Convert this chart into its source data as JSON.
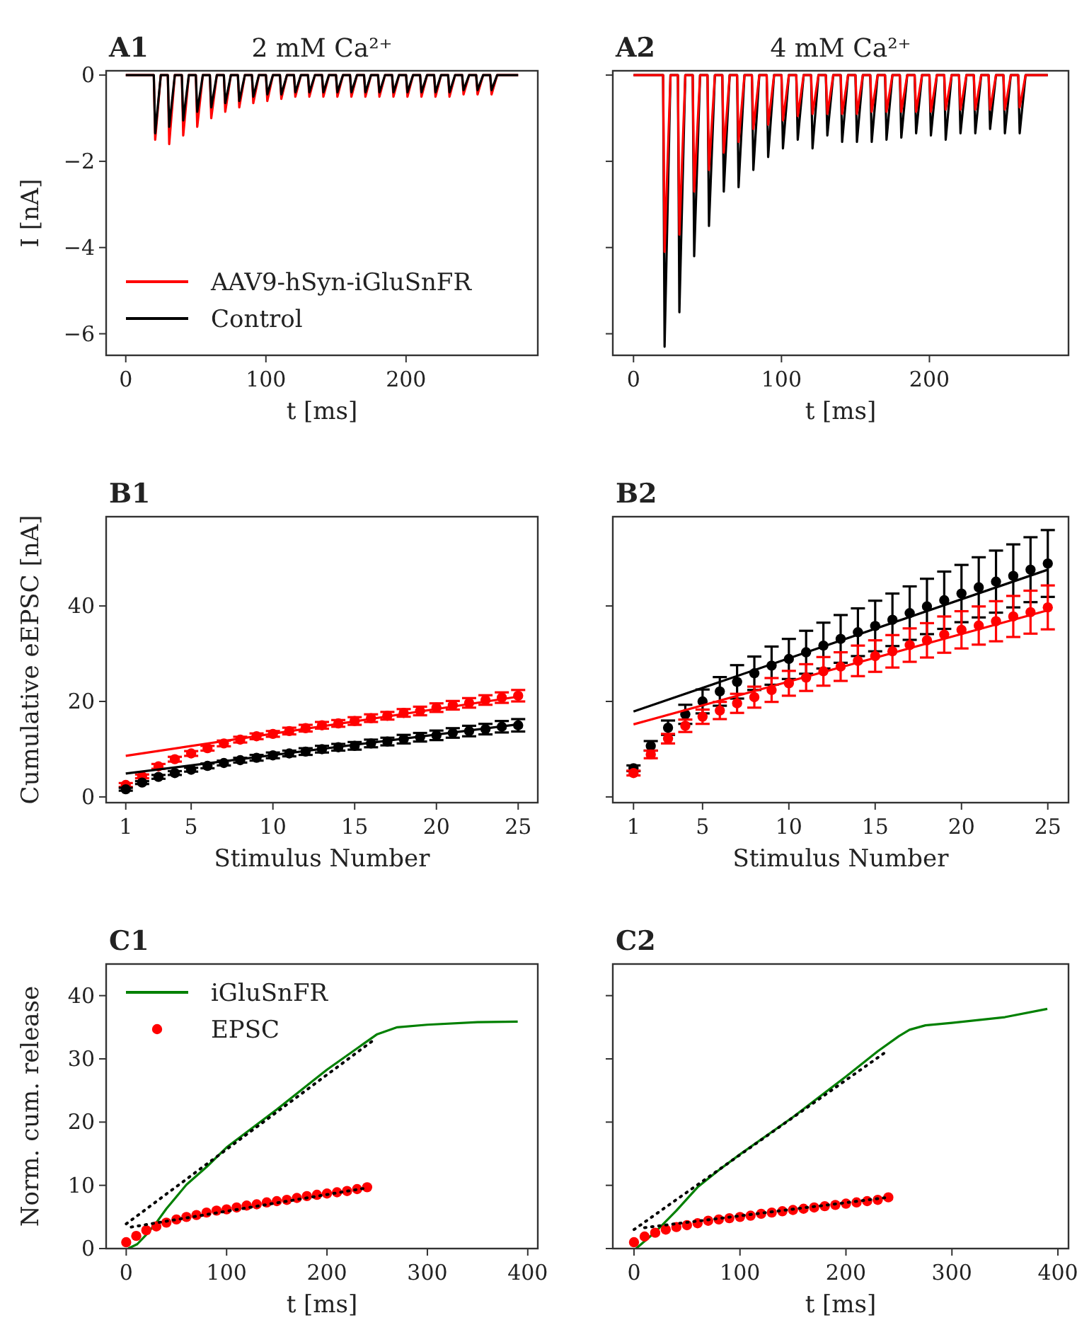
{
  "chart_data": [
    {
      "type": "line",
      "title": "2 mM Ca²⁺",
      "annotations": [
        "A1"
      ],
      "xlabel": "t [ms]",
      "ylabel": "I [nA]",
      "xlim": [
        -14,
        294
      ],
      "ylim": [
        -6.5,
        0.1
      ],
      "xticks": [
        0,
        100,
        200
      ],
      "yticks": [
        {
          "value": -6,
          "label": "−6"
        },
        {
          "value": -4,
          "label": "−4"
        },
        {
          "value": -2,
          "label": "−2"
        },
        0
      ],
      "legend": "bottom left",
      "x": [
        0,
        20,
        21,
        25,
        30,
        31,
        35,
        40,
        41,
        45,
        50,
        51,
        55,
        60,
        61,
        65,
        70,
        71,
        75,
        80,
        81,
        85,
        90,
        91,
        95,
        100,
        101,
        105,
        110,
        111,
        115,
        120,
        121,
        125,
        130,
        131,
        135,
        140,
        141,
        145,
        150,
        151,
        155,
        160,
        161,
        165,
        170,
        171,
        175,
        180,
        181,
        185,
        190,
        191,
        195,
        200,
        201,
        205,
        210,
        211,
        215,
        220,
        221,
        225,
        230,
        231,
        235,
        240,
        241,
        245,
        250,
        251,
        255,
        260,
        261,
        265,
        280
      ],
      "series": [
        {
          "name": "AAV9-hSyn-iGluSnFR",
          "color": "#ff0000",
          "values": [
            0,
            0,
            -1.5,
            0,
            0,
            -1.6,
            0,
            0,
            -1.4,
            0,
            0,
            -1.2,
            0,
            0,
            -1.0,
            0,
            0,
            -0.85,
            0,
            0,
            -0.75,
            0,
            0,
            -0.65,
            0,
            0,
            -0.6,
            0,
            0,
            -0.55,
            0,
            0,
            -0.5,
            0,
            0,
            -0.5,
            0,
            0,
            -0.5,
            0,
            0,
            -0.5,
            0,
            0,
            -0.5,
            0,
            0,
            -0.5,
            0,
            0,
            -0.5,
            0,
            0,
            -0.5,
            0,
            0,
            -0.5,
            0,
            0,
            -0.5,
            0,
            0,
            -0.5,
            0,
            0,
            -0.5,
            0,
            0,
            -0.45,
            0,
            0,
            -0.45,
            0,
            0,
            -0.45,
            0,
            0
          ]
        },
        {
          "name": "Control",
          "color": "#000000",
          "values": [
            0,
            0,
            -1.35,
            0,
            0,
            -1.2,
            0,
            0,
            -1.05,
            0,
            0,
            -0.85,
            0,
            0,
            -0.75,
            0,
            0,
            -0.65,
            0,
            0,
            -0.6,
            0,
            0,
            -0.5,
            0,
            0,
            -0.45,
            0,
            0,
            -0.45,
            0,
            0,
            -0.4,
            0,
            0,
            -0.4,
            0,
            0,
            -0.4,
            0,
            0,
            -0.4,
            0,
            0,
            -0.4,
            0,
            0,
            -0.4,
            0,
            0,
            -0.4,
            0,
            0,
            -0.4,
            0,
            0,
            -0.4,
            0,
            0,
            -0.4,
            0,
            0,
            -0.4,
            0,
            0,
            -0.4,
            0,
            0,
            -0.35,
            0,
            0,
            -0.35,
            0,
            0,
            -0.35,
            0,
            0
          ]
        }
      ]
    },
    {
      "type": "line",
      "title": "4 mM Ca²⁺",
      "annotations": [
        "A2"
      ],
      "xlabel": "t [ms]",
      "xlim": [
        -14,
        294
      ],
      "ylim": [
        -6.5,
        0.1
      ],
      "xticks": [
        0,
        100,
        200
      ],
      "yticks": [
        -6,
        -4,
        -2,
        0
      ],
      "tick_labels": "x",
      "x": [
        0,
        20,
        21,
        25,
        30,
        31,
        35,
        40,
        41,
        45,
        50,
        51,
        55,
        60,
        61,
        65,
        70,
        71,
        75,
        80,
        81,
        85,
        90,
        91,
        95,
        100,
        101,
        105,
        110,
        111,
        115,
        120,
        121,
        125,
        130,
        131,
        135,
        140,
        141,
        145,
        150,
        151,
        155,
        160,
        161,
        165,
        170,
        171,
        175,
        180,
        181,
        185,
        190,
        191,
        195,
        200,
        201,
        205,
        210,
        211,
        215,
        220,
        221,
        225,
        230,
        231,
        235,
        240,
        241,
        245,
        250,
        251,
        255,
        260,
        261,
        265,
        280
      ],
      "series": [
        {
          "color": "#000000",
          "values": [
            0,
            0,
            -6.3,
            0,
            0,
            -5.5,
            0,
            0,
            -4.2,
            0,
            0,
            -3.5,
            0,
            0,
            -2.7,
            0,
            0,
            -2.6,
            0,
            0,
            -2.2,
            0,
            0,
            -1.9,
            0,
            0,
            -1.7,
            0,
            0,
            -1.5,
            0,
            0,
            -1.7,
            0,
            0,
            -1.4,
            0,
            0,
            -1.55,
            0,
            0,
            -1.55,
            0,
            0,
            -1.55,
            0,
            0,
            -1.5,
            0,
            0,
            -1.45,
            0,
            0,
            -1.35,
            0,
            0,
            -1.4,
            0,
            0,
            -1.5,
            0,
            0,
            -1.35,
            0,
            0,
            -1.35,
            0,
            0,
            -1.25,
            0,
            0,
            -1.35,
            0,
            0,
            -1.35,
            0,
            0
          ]
        },
        {
          "color": "#ff0000",
          "values": [
            0,
            0,
            -4.1,
            0,
            0,
            -3.7,
            0,
            0,
            -2.7,
            0,
            0,
            -2.2,
            0,
            0,
            -1.8,
            0,
            0,
            -1.55,
            0,
            0,
            -1.25,
            0,
            0,
            -1.15,
            0,
            0,
            -1.05,
            0,
            0,
            -0.95,
            0,
            0,
            -0.9,
            0,
            0,
            -0.9,
            0,
            0,
            -0.9,
            0,
            0,
            -0.9,
            0,
            0,
            -0.85,
            0,
            0,
            -0.85,
            0,
            0,
            -0.85,
            0,
            0,
            -0.85,
            0,
            0,
            -0.85,
            0,
            0,
            -0.8,
            0,
            0,
            -0.8,
            0,
            0,
            -0.8,
            0,
            0,
            -0.8,
            0,
            0,
            -0.8,
            0,
            0,
            -0.75,
            0,
            0
          ]
        }
      ]
    },
    {
      "type": "scatter",
      "annotations": [
        "B1"
      ],
      "xlabel": "Stimulus Number",
      "ylabel": "Cumulative eEPSC [nA]",
      "xlim": [
        -0.2,
        26.2
      ],
      "ylim": [
        -1.2,
        58.7
      ],
      "xticks": [
        1,
        5,
        10,
        15,
        20,
        25
      ],
      "yticks": [
        0,
        20,
        40
      ],
      "x": [
        1,
        2,
        3,
        4,
        5,
        6,
        7,
        8,
        9,
        10,
        11,
        12,
        13,
        14,
        15,
        16,
        17,
        18,
        19,
        20,
        21,
        22,
        23,
        24,
        25
      ],
      "series": [
        {
          "color": "#ff0000",
          "marker": "circle",
          "values": [
            2.5,
            4.3,
            6.4,
            7.9,
            9.1,
            10.2,
            11.2,
            12,
            12.7,
            13.2,
            13.8,
            14.4,
            15,
            15.4,
            15.9,
            16.5,
            17,
            17.6,
            18,
            18.7,
            19.2,
            19.7,
            20.3,
            20.8,
            21.2
          ],
          "errors": [
            0.4,
            0.4,
            0.5,
            0.5,
            0.5,
            0.5,
            0.6,
            0.6,
            0.6,
            0.6,
            0.7,
            0.7,
            0.7,
            0.7,
            0.8,
            0.8,
            0.8,
            0.8,
            0.9,
            0.9,
            0.9,
            1.0,
            1.0,
            1.1,
            1.2
          ]
        },
        {
          "color": "#000000",
          "marker": "circle",
          "values": [
            1.6,
            3,
            4.2,
            5,
            5.7,
            6.5,
            7.1,
            7.7,
            8.2,
            8.7,
            9.1,
            9.5,
            10,
            10.4,
            10.7,
            11.2,
            11.6,
            12.1,
            12.5,
            12.9,
            13.4,
            13.8,
            14.2,
            14.7,
            15
          ],
          "errors": [
            0.3,
            0.3,
            0.4,
            0.4,
            0.4,
            0.5,
            0.5,
            0.5,
            0.6,
            0.6,
            0.6,
            0.7,
            0.7,
            0.7,
            0.8,
            0.8,
            0.8,
            0.9,
            0.9,
            1.0,
            1.0,
            1.1,
            1.1,
            1.2,
            1.3
          ]
        },
        {
          "type": "line",
          "color": "#ff0000",
          "x": [
            1,
            25
          ],
          "values": [
            8.6,
            21.0
          ]
        },
        {
          "type": "line",
          "color": "#000000",
          "x": [
            1,
            25
          ],
          "values": [
            4.9,
            15.2
          ]
        }
      ]
    },
    {
      "type": "scatter",
      "annotations": [
        "B2"
      ],
      "xlabel": "Stimulus Number",
      "xlim": [
        -0.2,
        26.2
      ],
      "ylim": [
        -1.2,
        58.7
      ],
      "xticks": [
        1,
        5,
        10,
        15,
        20,
        25
      ],
      "yticks": [
        0,
        20,
        40
      ],
      "tick_labels": "x",
      "x": [
        1,
        2,
        3,
        4,
        5,
        6,
        7,
        8,
        9,
        10,
        11,
        12,
        13,
        14,
        15,
        16,
        17,
        18,
        19,
        20,
        21,
        22,
        23,
        24,
        25
      ],
      "series": [
        {
          "color": "#000000",
          "marker": "circle",
          "values": [
            6.0,
            10.7,
            14.5,
            17.3,
            20,
            22.1,
            24.1,
            25.9,
            27.5,
            28.9,
            30.3,
            31.7,
            33.1,
            34.5,
            35.8,
            37.1,
            38.5,
            39.9,
            41.2,
            42.6,
            43.9,
            45.1,
            46.3,
            47.6,
            48.9
          ],
          "errors": [
            0.6,
            1.0,
            1.5,
            2.0,
            2.5,
            3.0,
            3.5,
            3.5,
            4.0,
            4.2,
            4.5,
            4.8,
            5.0,
            5.0,
            5.3,
            5.5,
            5.6,
            5.8,
            6.0,
            6.0,
            6.3,
            6.5,
            6.6,
            6.8,
            7.0
          ]
        },
        {
          "color": "#ff0000",
          "marker": "circle",
          "values": [
            5.0,
            8.9,
            12.2,
            14.9,
            16.8,
            18.1,
            19.6,
            20.9,
            22.4,
            23.8,
            25,
            26.3,
            27.3,
            28.5,
            29.5,
            30.5,
            31.8,
            32.8,
            34,
            35,
            35.9,
            36.8,
            37.8,
            38.7,
            39.7
          ],
          "errors": [
            0.5,
            0.8,
            1.0,
            1.3,
            1.5,
            1.8,
            2.0,
            2.2,
            2.5,
            2.6,
            2.8,
            3.0,
            3.0,
            3.2,
            3.3,
            3.4,
            3.5,
            3.6,
            3.8,
            3.9,
            4.0,
            4.2,
            4.3,
            4.5,
            4.6
          ]
        },
        {
          "type": "line",
          "color": "#000000",
          "x": [
            1,
            25
          ],
          "values": [
            17.9,
            47.6
          ]
        },
        {
          "type": "line",
          "color": "#ff0000",
          "x": [
            1,
            25
          ],
          "values": [
            15.2,
            39.1
          ]
        }
      ]
    },
    {
      "type": "line",
      "annotations": [
        "C1"
      ],
      "xlabel": "t [ms]",
      "ylabel": "Norm. cum. release",
      "xlim": [
        -20,
        410
      ],
      "ylim": [
        0,
        45
      ],
      "xticks": [
        0,
        100,
        200,
        300,
        400
      ],
      "yticks": [
        0,
        10,
        20,
        30,
        40
      ],
      "legend": "top left",
      "series": [
        {
          "name": "iGluSnFR",
          "color": "#008000",
          "x": [
            2,
            11,
            20,
            30,
            40,
            60,
            80,
            100,
            150,
            200,
            250,
            270,
            300,
            350,
            390
          ],
          "values": [
            0,
            0.7,
            2.2,
            4.1,
            6.3,
            10.1,
            12.9,
            16,
            22,
            28.3,
            33.9,
            35,
            35.4,
            35.8,
            35.9
          ]
        },
        {
          "type": "scatter",
          "name": "EPSC",
          "color": "#ff0000",
          "marker": "circle",
          "x": [
            0,
            10,
            20,
            30,
            40,
            50,
            60,
            70,
            80,
            90,
            100,
            110,
            120,
            130,
            140,
            150,
            160,
            170,
            180,
            190,
            200,
            210,
            220,
            230,
            240
          ],
          "values": [
            1.0,
            2.0,
            2.9,
            3.5,
            4.1,
            4.6,
            5.0,
            5.3,
            5.7,
            6.0,
            6.2,
            6.5,
            6.8,
            7.0,
            7.3,
            7.5,
            7.7,
            8.0,
            8.3,
            8.5,
            8.7,
            8.9,
            9.1,
            9.4,
            9.7
          ]
        },
        {
          "color": "#000000",
          "line_style": "dotted",
          "x": [
            0,
            245
          ],
          "values": [
            3.9,
            32.8
          ]
        },
        {
          "color": "#000000",
          "line_style": "dotted",
          "x": [
            5,
            240
          ],
          "values": [
            3.4,
            9.6
          ]
        }
      ]
    },
    {
      "type": "line",
      "annotations": [
        "C2"
      ],
      "xlabel": "t [ms]",
      "xlim": [
        -20,
        410
      ],
      "ylim": [
        0,
        45
      ],
      "xticks": [
        0,
        100,
        200,
        300,
        400
      ],
      "yticks": [
        0,
        10,
        20,
        30,
        40
      ],
      "tick_labels": "x",
      "series": [
        {
          "color": "#008000",
          "x": [
            2,
            20,
            40,
            60,
            80,
            100,
            150,
            200,
            230,
            250,
            260,
            275,
            300,
            350,
            390
          ],
          "values": [
            0,
            2.6,
            6,
            9.7,
            12.4,
            14.9,
            20.8,
            27.2,
            31.2,
            33.6,
            34.6,
            35.3,
            35.7,
            36.6,
            37.9
          ]
        },
        {
          "type": "scatter",
          "color": "#ff0000",
          "marker": "circle",
          "x": [
            0,
            10,
            20,
            30,
            40,
            50,
            60,
            70,
            80,
            90,
            100,
            110,
            120,
            130,
            140,
            150,
            160,
            170,
            180,
            190,
            200,
            210,
            220,
            230,
            240
          ],
          "values": [
            1.0,
            1.9,
            2.5,
            3.0,
            3.4,
            3.7,
            4.0,
            4.4,
            4.6,
            4.8,
            5.0,
            5.2,
            5.5,
            5.7,
            5.9,
            6.1,
            6.3,
            6.5,
            6.7,
            6.9,
            7.1,
            7.3,
            7.5,
            7.7,
            8.1
          ]
        },
        {
          "color": "#000000",
          "line_style": "dotted",
          "x": [
            0,
            236
          ],
          "values": [
            3.0,
            30.9
          ]
        },
        {
          "color": "#000000",
          "line_style": "dotted",
          "x": [
            10,
            240
          ],
          "values": [
            3.3,
            8.1
          ]
        }
      ]
    }
  ]
}
